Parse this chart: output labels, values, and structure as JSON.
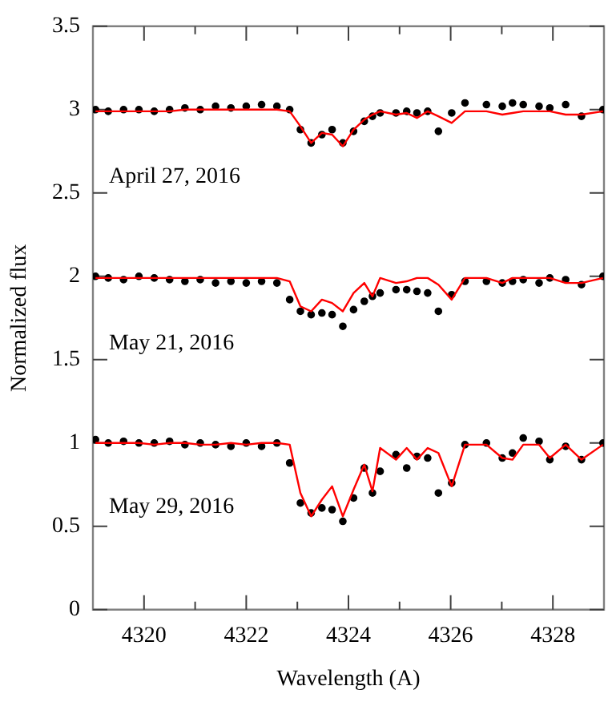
{
  "chart_data": {
    "type": "scatter",
    "xlabel": "Wavelength (A)",
    "ylabel": "Normalized flux",
    "x": [
      4319.05,
      4319.3,
      4319.6,
      4319.9,
      4320.2,
      4320.5,
      4320.8,
      4321.1,
      4321.4,
      4321.7,
      4322.0,
      4322.3,
      4322.6,
      4322.85,
      4323.06,
      4323.27,
      4323.48,
      4323.68,
      4323.89,
      4324.1,
      4324.31,
      4324.47,
      4324.62,
      4324.93,
      4325.14,
      4325.34,
      4325.55,
      4325.76,
      4326.02,
      4326.28,
      4326.7,
      4327.01,
      4327.21,
      4327.42,
      4327.73,
      4327.94,
      4328.25,
      4328.56,
      4328.98
    ],
    "series": [
      {
        "name": "April 27, 2016",
        "marker": "circle",
        "color": "#000000",
        "values": [
          3.0,
          2.99,
          3.0,
          3.0,
          2.99,
          3.0,
          3.01,
          3.0,
          3.02,
          3.01,
          3.02,
          3.03,
          3.02,
          3.0,
          2.88,
          2.8,
          2.85,
          2.88,
          2.8,
          2.87,
          2.93,
          2.96,
          2.98,
          2.98,
          2.99,
          2.98,
          2.99,
          2.87,
          2.98,
          3.04,
          3.03,
          3.02,
          3.04,
          3.03,
          3.02,
          3.01,
          3.03,
          2.96,
          3.0
        ]
      },
      {
        "type": "line",
        "color": "#ff0000",
        "values": [
          2.99,
          2.99,
          2.99,
          2.99,
          2.99,
          2.99,
          3.0,
          3.0,
          3.0,
          3.0,
          3.0,
          3.0,
          3.0,
          2.99,
          2.9,
          2.8,
          2.86,
          2.85,
          2.78,
          2.88,
          2.94,
          2.97,
          2.99,
          2.97,
          2.98,
          2.95,
          2.99,
          2.96,
          2.92,
          2.99,
          2.99,
          2.97,
          2.98,
          2.99,
          2.99,
          2.99,
          2.97,
          2.97,
          2.99
        ]
      },
      {
        "name": "May 21, 2016",
        "marker": "circle",
        "color": "#000000",
        "values": [
          2.0,
          1.99,
          1.98,
          2.0,
          1.99,
          1.98,
          1.97,
          1.98,
          1.96,
          1.97,
          1.96,
          1.97,
          1.96,
          1.86,
          1.79,
          1.77,
          1.78,
          1.77,
          1.7,
          1.8,
          1.85,
          1.88,
          1.9,
          1.92,
          1.92,
          1.91,
          1.9,
          1.79,
          1.89,
          1.97,
          1.97,
          1.96,
          1.97,
          1.98,
          1.96,
          1.99,
          1.98,
          1.95,
          2.0
        ]
      },
      {
        "type": "line",
        "color": "#ff0000",
        "values": [
          1.99,
          1.99,
          1.99,
          1.99,
          1.99,
          1.99,
          1.99,
          1.99,
          1.99,
          1.99,
          1.99,
          1.99,
          1.99,
          1.97,
          1.82,
          1.79,
          1.86,
          1.84,
          1.79,
          1.9,
          1.96,
          1.88,
          1.99,
          1.96,
          1.97,
          1.99,
          1.99,
          1.95,
          1.86,
          1.99,
          1.99,
          1.96,
          1.99,
          1.99,
          1.99,
          1.99,
          1.96,
          1.96,
          1.99
        ]
      },
      {
        "name": "May 29, 2016",
        "marker": "circle",
        "color": "#000000",
        "values": [
          1.02,
          1.0,
          1.01,
          1.0,
          1.0,
          1.01,
          0.99,
          1.0,
          0.99,
          0.98,
          1.0,
          0.98,
          1.0,
          0.88,
          0.64,
          0.58,
          0.61,
          0.6,
          0.53,
          0.67,
          0.85,
          0.7,
          0.83,
          0.93,
          0.85,
          0.92,
          0.91,
          0.7,
          0.76,
          0.99,
          1.0,
          0.91,
          0.94,
          1.03,
          1.01,
          0.9,
          0.98,
          0.9,
          1.0
        ]
      },
      {
        "type": "line",
        "color": "#ff0000",
        "values": [
          1.0,
          1.0,
          1.0,
          1.0,
          0.99,
          1.0,
          1.0,
          0.99,
          0.99,
          1.0,
          0.99,
          1.0,
          1.0,
          0.99,
          0.7,
          0.56,
          0.66,
          0.74,
          0.56,
          0.72,
          0.87,
          0.71,
          0.97,
          0.9,
          0.97,
          0.9,
          0.97,
          0.94,
          0.74,
          0.99,
          0.99,
          0.91,
          0.9,
          0.99,
          0.99,
          0.91,
          0.99,
          0.9,
          0.99
        ]
      }
    ],
    "xlim": [
      4319,
      4329
    ],
    "xticks": [
      4320,
      {
        "value": 4321,
        "label": null
      },
      4322,
      {
        "value": 4323,
        "label": null
      },
      4324,
      {
        "value": 4325,
        "label": null
      },
      4326,
      {
        "value": 4327,
        "label": null
      },
      4328
    ],
    "ylim": [
      0,
      3.5
    ],
    "yticks": [
      0,
      0.5,
      1,
      1.5,
      2,
      2.5,
      3,
      3.5
    ],
    "grid": false,
    "legend": false,
    "line_style": "solid"
  }
}
